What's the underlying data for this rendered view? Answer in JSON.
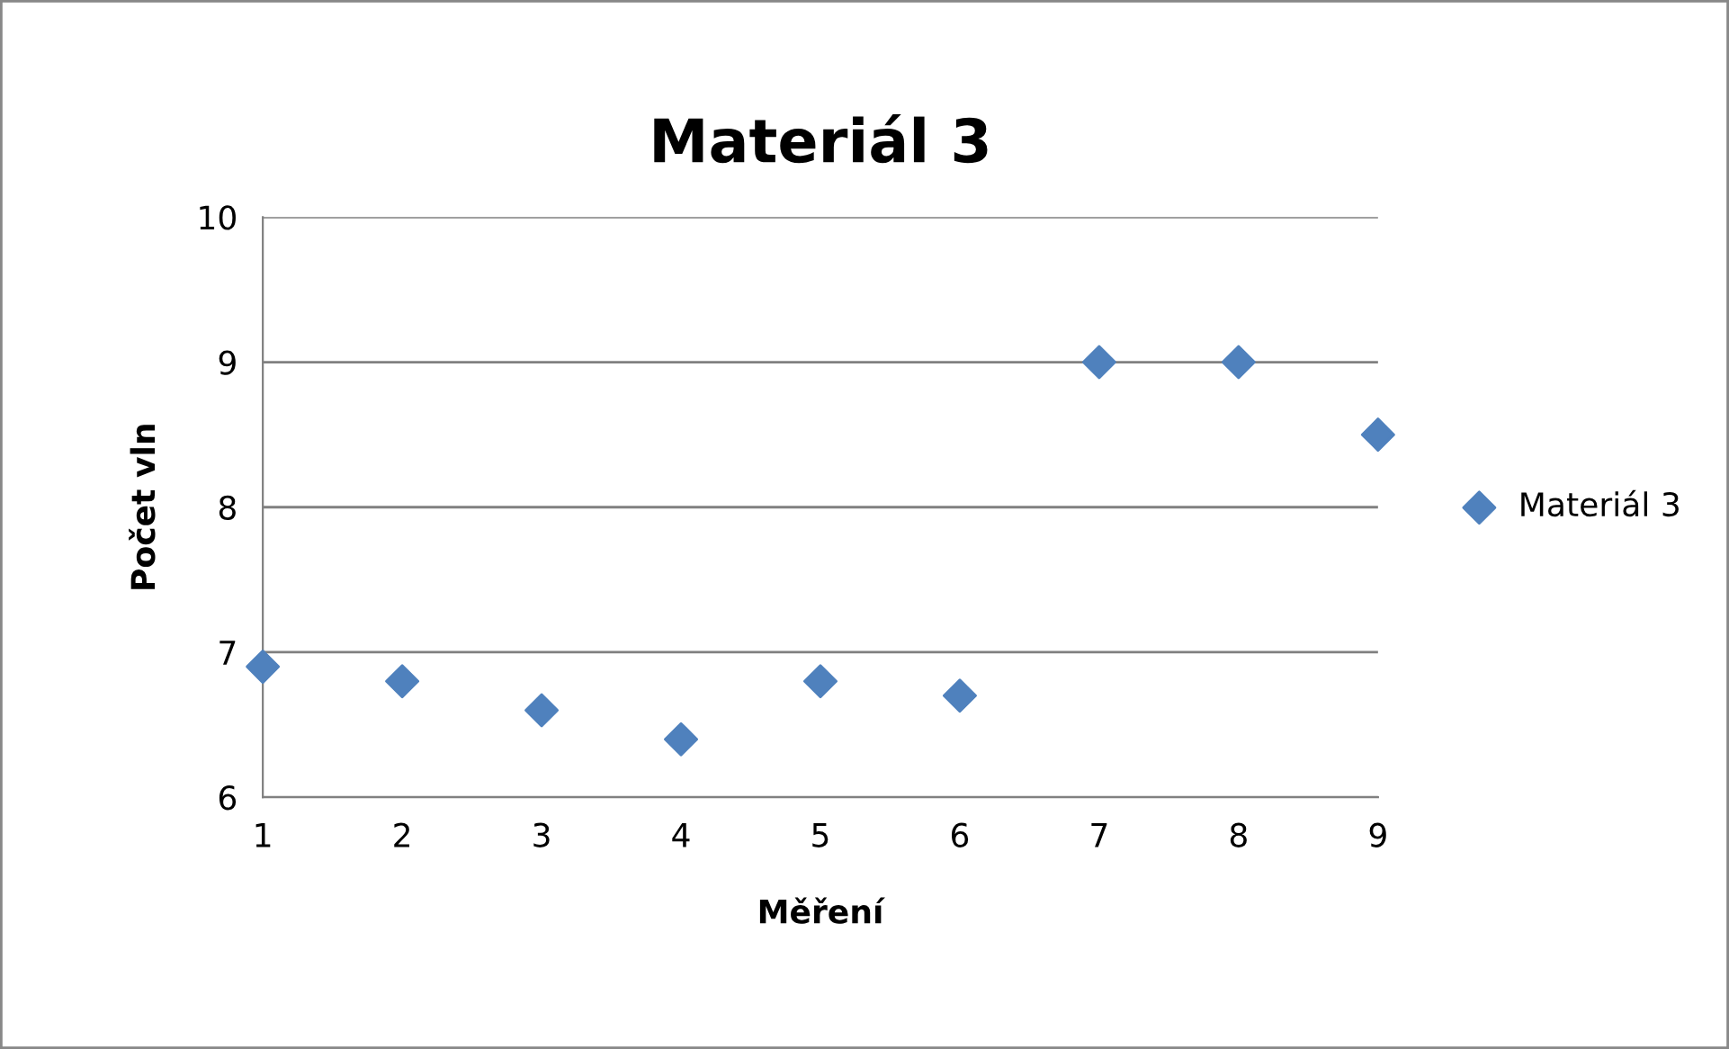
{
  "chart_data": {
    "type": "scatter",
    "title": "Materiál 3",
    "xlabel": "Měření",
    "ylabel": "Počet vln",
    "x": [
      1,
      2,
      3,
      4,
      5,
      6,
      7,
      8,
      9
    ],
    "series": [
      {
        "name": "Materiál 3",
        "color": "#4f81bd",
        "values": [
          6.9,
          6.8,
          6.6,
          6.4,
          6.8,
          6.7,
          9,
          9,
          8.5
        ]
      }
    ],
    "xlim": [
      1,
      9
    ],
    "xticks": [
      1,
      2,
      3,
      4,
      5,
      6,
      7,
      8,
      9
    ],
    "ylim": [
      6,
      10
    ],
    "yticks": [
      6,
      7,
      8,
      9,
      10
    ],
    "grid": "y",
    "legend": "right",
    "marker": "diamond"
  }
}
